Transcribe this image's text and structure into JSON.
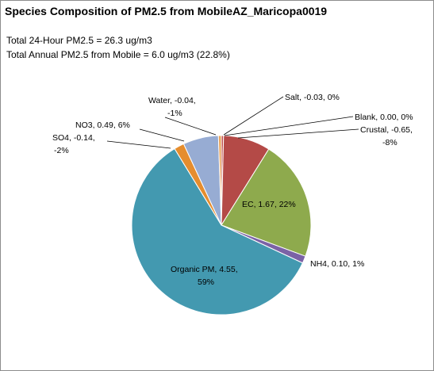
{
  "chart_data": {
    "type": "pie",
    "title": "Species Composition of PM2.5 from MobileAZ_Maricopa0019",
    "subtitle_lines": [
      "Total 24-Hour PM2.5 = 26.3 ug/m3",
      "Total Annual PM2.5 from Mobile = 6.0 ug/m3 (22.8%)"
    ],
    "slices": [
      {
        "name": "Salt",
        "value": -0.03,
        "percent": 0,
        "color": "#C0504D",
        "label_lines": [
          "Salt, -0.03, 0%"
        ]
      },
      {
        "name": "Blank",
        "value": 0.0,
        "percent": 0,
        "color": "#9BBB59",
        "label_lines": [
          "Blank, 0.00, 0%"
        ]
      },
      {
        "name": "Crustal",
        "value": -0.65,
        "percent": -8,
        "color": "#B44A47",
        "label_lines": [
          "Crustal, -0.65,",
          "-8%"
        ]
      },
      {
        "name": "EC",
        "value": 1.67,
        "percent": 22,
        "color": "#8EAA4D",
        "label_lines": [
          "EC, 1.67, 22%"
        ]
      },
      {
        "name": "NH4",
        "value": 0.1,
        "percent": 1,
        "color": "#7B62A6",
        "label_lines": [
          "NH4, 0.10, 1%"
        ]
      },
      {
        "name": "Organic PM",
        "value": 4.55,
        "percent": 59,
        "color": "#4399B0",
        "label_lines": [
          "Organic PM, 4.55,",
          "59%"
        ]
      },
      {
        "name": "SO4",
        "value": -0.14,
        "percent": -2,
        "color": "#E58D2E",
        "label_lines": [
          "SO4, -0.14,",
          "-2%"
        ]
      },
      {
        "name": "NO3",
        "value": 0.49,
        "percent": 6,
        "color": "#97ACD3",
        "label_lines": [
          "NO3, 0.49, 6%"
        ]
      },
      {
        "name": "Water",
        "value": -0.04,
        "percent": -1,
        "color": "#E9A45A",
        "label_lines": [
          "Water, -0.04,",
          "-1%"
        ]
      }
    ],
    "legend": "none"
  }
}
